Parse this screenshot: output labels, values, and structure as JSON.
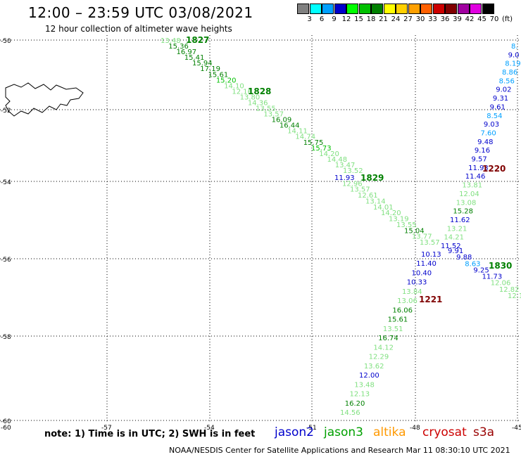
{
  "header": {
    "title": "12:00 – 23:59 UTC 03/08/2021",
    "subtitle": "12 hour collection of altimeter wave heights"
  },
  "scale": {
    "labels": [
      "3",
      "6",
      "9",
      "12",
      "15",
      "18",
      "21",
      "24",
      "27",
      "30",
      "33",
      "36",
      "39",
      "42",
      "45",
      "70"
    ],
    "unit": "(ft)",
    "colors": [
      "#808080",
      "#00ffff",
      "#00a0ff",
      "#0000cc",
      "#00ff00",
      "#00c000",
      "#008000",
      "#ffff00",
      "#ffd000",
      "#ffa000",
      "#ff6000",
      "#cc0000",
      "#800000",
      "#a000a0",
      "#e000e0",
      "#000000"
    ]
  },
  "axes": {
    "lat_labels": [
      "-50",
      "-52",
      "-54",
      "-56",
      "-58",
      "-60"
    ],
    "lon_labels": [
      "-57",
      "-54",
      "-51",
      "-48",
      "-45"
    ],
    "corner_label": "-60"
  },
  "tracks": [
    {
      "id": "1827",
      "color": "#008000",
      "labels": [
        {
          "t": "13.48",
          "c": "#80e080"
        },
        {
          "t": "15.36",
          "c": "#008000"
        },
        {
          "t": "16.97",
          "c": "#008000"
        },
        {
          "t": "15.41",
          "c": "#008000"
        },
        {
          "t": "15.94",
          "c": "#008000"
        },
        {
          "t": "17.19",
          "c": "#008000"
        },
        {
          "t": "15.61",
          "c": "#008000"
        },
        {
          "t": "15.20",
          "c": "#00c000"
        },
        {
          "t": "14.10",
          "c": "#80e080"
        },
        {
          "t": "12.16",
          "c": "#80e080"
        },
        {
          "t": "13.80",
          "c": "#80e080"
        },
        {
          "t": "14.36",
          "c": "#80e080"
        },
        {
          "t": "13.55",
          "c": "#80e080"
        },
        {
          "t": "13.57",
          "c": "#80e080"
        },
        {
          "t": "16.09",
          "c": "#008000"
        },
        {
          "t": "16.44",
          "c": "#008000"
        },
        {
          "t": "14.11",
          "c": "#80e080"
        },
        {
          "t": "14.74",
          "c": "#80e080"
        },
        {
          "t": "15.75",
          "c": "#008000"
        },
        {
          "t": "15.73",
          "c": "#00c000"
        },
        {
          "t": "14.20",
          "c": "#80e080"
        },
        {
          "t": "14.48",
          "c": "#80e080"
        },
        {
          "t": "13.47",
          "c": "#80e080"
        },
        {
          "t": "13.52",
          "c": "#80e080"
        }
      ]
    },
    {
      "id": "1828",
      "color": "#008000"
    },
    {
      "id": "1829",
      "color": "#008000",
      "labels": [
        {
          "t": "11.93",
          "c": "#0000cc"
        },
        {
          "t": "12.96",
          "c": "#80e080"
        },
        {
          "t": "13.57",
          "c": "#80e080"
        },
        {
          "t": "12.61",
          "c": "#80e080"
        },
        {
          "t": "13.14",
          "c": "#80e080"
        },
        {
          "t": "14.01",
          "c": "#80e080"
        },
        {
          "t": "14.20",
          "c": "#80e080"
        },
        {
          "t": "13.19",
          "c": "#80e080"
        },
        {
          "t": "13.55",
          "c": "#80e080"
        },
        {
          "t": "15.04",
          "c": "#008000"
        },
        {
          "t": "13.77",
          "c": "#80e080"
        },
        {
          "t": "13.57",
          "c": "#80e080"
        }
      ]
    },
    {
      "id": "1830",
      "color": "#008000",
      "labels": [
        {
          "t": "9.91",
          "c": "#0000cc"
        },
        {
          "t": "9.88",
          "c": "#0000cc"
        },
        {
          "t": "8.63",
          "c": "#00a0ff"
        },
        {
          "t": "9.25",
          "c": "#0000cc"
        },
        {
          "t": "11.73",
          "c": "#0000cc"
        },
        {
          "t": "12.06",
          "c": "#80e080"
        },
        {
          "t": "12.82",
          "c": "#80e080"
        },
        {
          "t": "12.1",
          "c": "#80e080"
        }
      ]
    },
    {
      "id": "1220",
      "color": "#800000",
      "labels": [
        {
          "t": "8.",
          "c": "#00a0ff"
        },
        {
          "t": "9.0",
          "c": "#0000cc"
        },
        {
          "t": "8.19",
          "c": "#00a0ff"
        },
        {
          "t": "8.86",
          "c": "#00a0ff"
        },
        {
          "t": "8.56",
          "c": "#00a0ff"
        },
        {
          "t": "9.02",
          "c": "#0000cc"
        },
        {
          "t": "9.31",
          "c": "#0000cc"
        },
        {
          "t": "9.61",
          "c": "#0000cc"
        },
        {
          "t": "8.54",
          "c": "#00a0ff"
        },
        {
          "t": "9.03",
          "c": "#0000cc"
        },
        {
          "t": "7.60",
          "c": "#00a0ff"
        },
        {
          "t": "9.48",
          "c": "#0000cc"
        },
        {
          "t": "9.16",
          "c": "#0000cc"
        },
        {
          "t": "9.57",
          "c": "#0000cc"
        },
        {
          "t": "11.93",
          "c": "#0000cc"
        },
        {
          "t": "11.46",
          "c": "#0000cc"
        },
        {
          "t": "13.81",
          "c": "#80e080"
        },
        {
          "t": "12.04",
          "c": "#80e080"
        },
        {
          "t": "13.08",
          "c": "#80e080"
        },
        {
          "t": "15.28",
          "c": "#008000"
        },
        {
          "t": "11.62",
          "c": "#0000cc"
        },
        {
          "t": "13.21",
          "c": "#80e080"
        },
        {
          "t": "14.21",
          "c": "#80e080"
        },
        {
          "t": "11.52",
          "c": "#0000cc"
        }
      ]
    },
    {
      "id": "1221",
      "color": "#800000",
      "labels": [
        {
          "t": "10.13",
          "c": "#0000cc"
        },
        {
          "t": "11.40",
          "c": "#0000cc"
        },
        {
          "t": "10.40",
          "c": "#0000cc"
        },
        {
          "t": "10.33",
          "c": "#0000cc"
        },
        {
          "t": "13.84",
          "c": "#80e080"
        },
        {
          "t": "13.06",
          "c": "#80e080"
        },
        {
          "t": "16.06",
          "c": "#008000"
        },
        {
          "t": "15.61",
          "c": "#008000"
        },
        {
          "t": "13.51",
          "c": "#80e080"
        },
        {
          "t": "16.74",
          "c": "#008000"
        },
        {
          "t": "14.12",
          "c": "#80e080"
        },
        {
          "t": "12.29",
          "c": "#80e080"
        },
        {
          "t": "13.62",
          "c": "#80e080"
        },
        {
          "t": "12.00",
          "c": "#0000cc"
        },
        {
          "t": "13.48",
          "c": "#80e080"
        },
        {
          "t": "12.13",
          "c": "#80e080"
        },
        {
          "t": "16.20",
          "c": "#008000"
        },
        {
          "t": "14.56",
          "c": "#80e080"
        }
      ]
    }
  ],
  "footer": {
    "note": "note: 1) Time is in UTC; 2) SWH is in feet",
    "satellites": [
      {
        "name": "jason2",
        "color": "#0000cc"
      },
      {
        "name": "jason3",
        "color": "#00a000"
      },
      {
        "name": "altika",
        "color": "#ff9900"
      },
      {
        "name": "cryosat",
        "color": "#cc0000"
      },
      {
        "name": "s3a",
        "color": "#990000"
      }
    ],
    "credit": "NOAA/NESDIS Center for Satellite Applications and Research   Mar 11 08:30:10 UTC 2021"
  }
}
